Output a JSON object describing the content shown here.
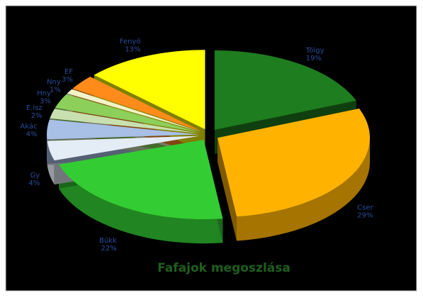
{
  "chart_data": {
    "type": "pie3d",
    "title": "Fafajok megoszlása",
    "categories": [
      "Tölgy",
      "Cser",
      "Bükk",
      "Gy",
      "Akác",
      "E.lsz",
      "Hny",
      "Nny",
      "EF",
      "Fenyő"
    ],
    "values": [
      19,
      29,
      22,
      4,
      4,
      2,
      3,
      1,
      3,
      13
    ],
    "value_labels": [
      "19%",
      "29%",
      "22%",
      "4%",
      "4%",
      "2%",
      "3%",
      "1%",
      "3%",
      "13%"
    ],
    "colors": [
      "#1e7d1e",
      "#ffb300",
      "#33cc33",
      "#e4ecf6",
      "#a8bfe6",
      "#c8e0b0",
      "#8ccf5a",
      "#f2f2c8",
      "#ff8c1a",
      "#ffff00"
    ]
  }
}
